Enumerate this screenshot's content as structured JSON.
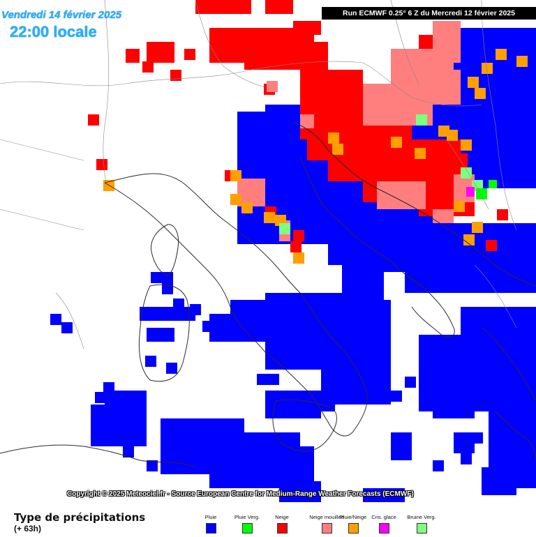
{
  "header": {
    "date": "Vendredi 14 février 2025",
    "heure": "22:00 locale",
    "run": "Run ECMWF 0.25° 6 Z du Mercredi 12 février 2025"
  },
  "copyright": "Copyright © 2025 Meteociel.fr - Source European Centre for Medium-Range Weather Forecasts (ECMWF)",
  "legend": {
    "title": "Type de précipitations",
    "subtitle": "(+ 63h)",
    "items": [
      {
        "label": "Pluie",
        "color": "#0000ff"
      },
      {
        "label": "Pluie Verg.",
        "color": "#00ff00"
      },
      {
        "label": "Neige",
        "color": "#ff0000"
      },
      {
        "label": "Neige mouillée",
        "color": "#ff7f7f"
      },
      {
        "label": "Pluie/Neige",
        "color": "#ff9f00"
      },
      {
        "label": "Cris. glace",
        "color": "#ff00ff"
      },
      {
        "label": "Bruine Verg.",
        "color": "#7fff7f"
      }
    ]
  },
  "map": {
    "colors": {
      "pluie": "#0000ff",
      "neige": "#ff0000",
      "mouillee": "#ff7f7f",
      "mixte": "#ff9f00",
      "verglas": "#7fff7f",
      "pluie_verg": "#00ff00",
      "cristaux": "#ff00ff"
    }
  }
}
